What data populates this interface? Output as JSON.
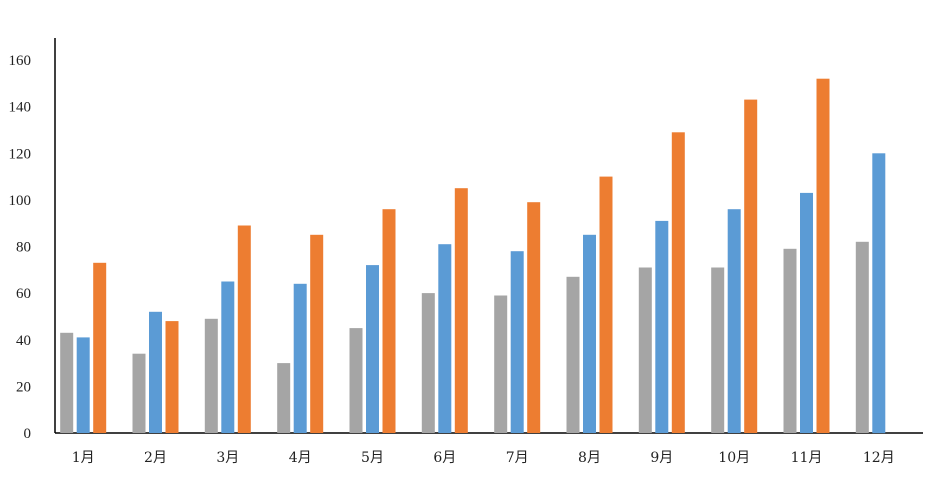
{
  "chart_data": {
    "type": "bar",
    "title": "",
    "xlabel": "",
    "ylabel": "",
    "categories": [
      "1月",
      "2月",
      "3月",
      "4月",
      "5月",
      "6月",
      "7月",
      "8月",
      "9月",
      "10月",
      "11月",
      "12月"
    ],
    "series": [
      {
        "color": "#a5a5a5",
        "values": [
          43,
          34,
          49,
          30,
          45,
          60,
          59,
          67,
          71,
          71,
          79,
          82
        ]
      },
      {
        "color": "#5b9bd5",
        "values": [
          41,
          52,
          65,
          64,
          72,
          81,
          78,
          85,
          91,
          96,
          103,
          120
        ]
      },
      {
        "color": "#ed7d31",
        "values": [
          73,
          48,
          89,
          85,
          96,
          105,
          99,
          110,
          129,
          143,
          152,
          null
        ]
      }
    ],
    "ylim": [
      0,
      160
    ],
    "yticks": [
      0,
      20,
      40,
      60,
      80,
      100,
      120,
      140,
      160
    ],
    "grid": false,
    "legend": "none"
  }
}
